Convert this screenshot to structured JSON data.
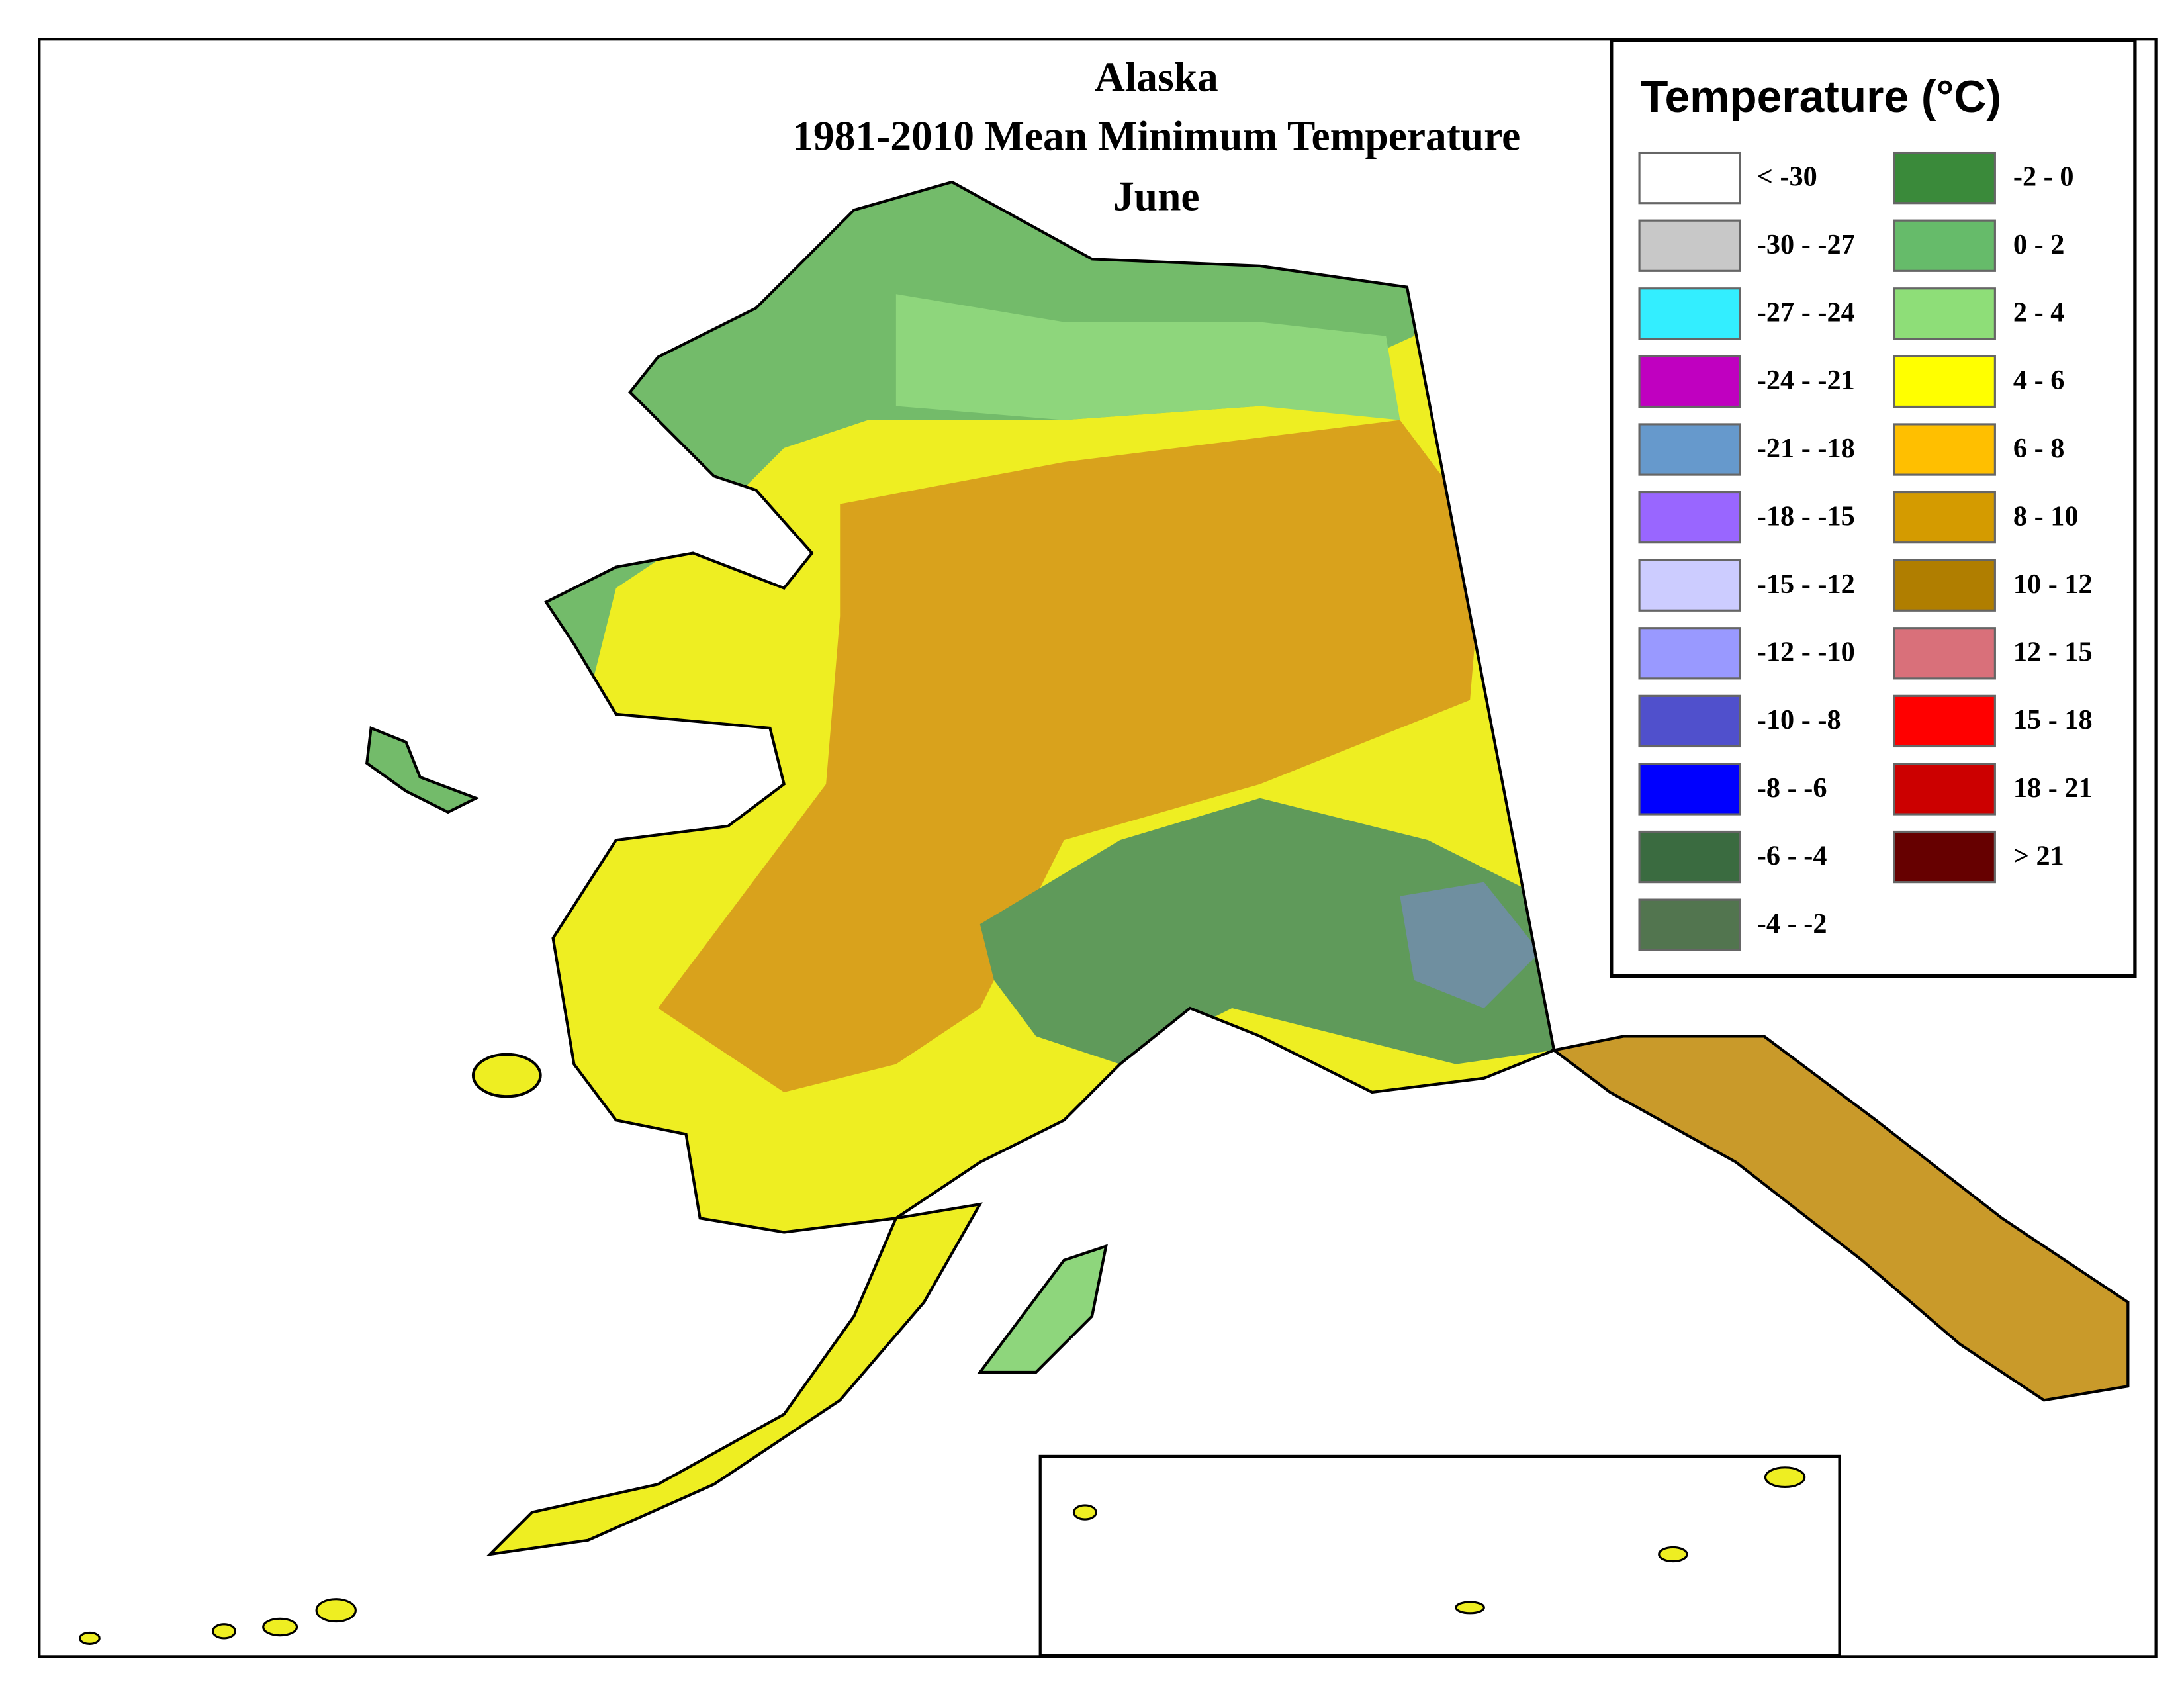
{
  "title": [
    "Alaska",
    "1981-2010 Mean Minimum Temperature",
    "June"
  ],
  "legend": {
    "title": "Temperature (°C)",
    "columns": [
      [
        {
          "label": "< -30",
          "color": "#ffffff"
        },
        {
          "label": "-30 - -27",
          "color": "#c8c8c8"
        },
        {
          "label": "-27 - -24",
          "color": "#33eeff"
        },
        {
          "label": "-24 - -21",
          "color": "#c000c0"
        },
        {
          "label": "-21 - -18",
          "color": "#6699cc"
        },
        {
          "label": "-18 - -15",
          "color": "#9966ff"
        },
        {
          "label": "-15 - -12",
          "color": "#ccccff"
        },
        {
          "label": "-12 - -10",
          "color": "#9999ff"
        },
        {
          "label": "-10 - -8",
          "color": "#5050cc"
        },
        {
          "label": "-8 - -6",
          "color": "#0000ff"
        },
        {
          "label": "-6 - -4",
          "color": "#3a6b40"
        },
        {
          "label": "-4 - -2",
          "color": "#52754f"
        }
      ],
      [
        {
          "label": "-2 - 0",
          "color": "#3a8a3a"
        },
        {
          "label": "0 - 2",
          "color": "#66bb6a"
        },
        {
          "label": "2 - 4",
          "color": "#8ede78"
        },
        {
          "label": "4 - 6",
          "color": "#ffff00"
        },
        {
          "label": "6 - 8",
          "color": "#ffbf00"
        },
        {
          "label": "8 - 10",
          "color": "#d49b00"
        },
        {
          "label": "10 - 12",
          "color": "#b07e00"
        },
        {
          "label": "12 - 15",
          "color": "#d9707a"
        },
        {
          "label": "15 - 18",
          "color": "#ff0000"
        },
        {
          "label": "18 - 21",
          "color": "#cc0000"
        },
        {
          "label": "> 21",
          "color": "#660000"
        }
      ]
    ]
  }
}
